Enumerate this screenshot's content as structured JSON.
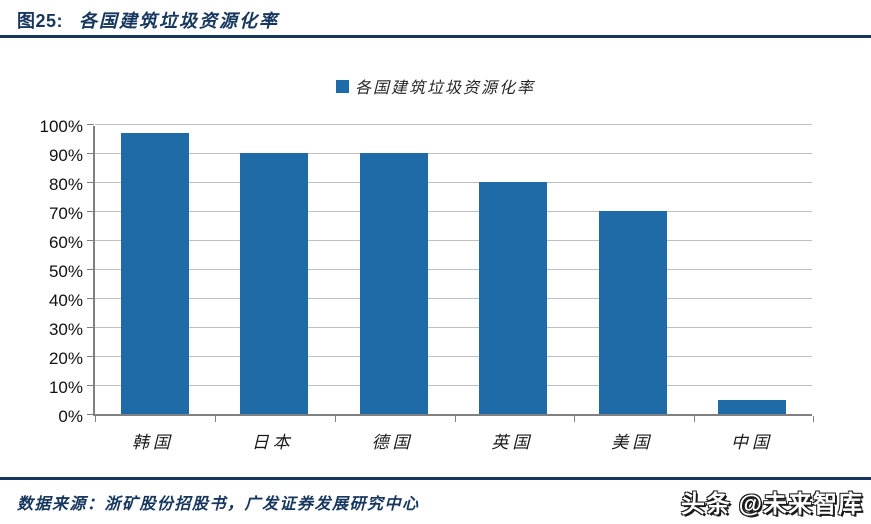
{
  "figure": {
    "title_prefix": "图25:",
    "title_text": "各国建筑垃圾资源化率",
    "source_line": "数据来源：浙矿股份招股书，广发证券发展研究中心",
    "watermark": "头条 @未来智库"
  },
  "legend": {
    "label": "各国建筑垃圾资源化率",
    "marker_color": "#1F6BA8"
  },
  "chart_data": {
    "type": "bar",
    "title": "各国建筑垃圾资源化率",
    "categories": [
      "韩国",
      "日本",
      "德国",
      "英国",
      "美国",
      "中国"
    ],
    "values": [
      97,
      90,
      90,
      80,
      70,
      5
    ],
    "unit": "%",
    "xlabel": "",
    "ylabel": "",
    "ylim": [
      0,
      100
    ],
    "ytick_step": 10,
    "ytick_labels": [
      "0%",
      "10%",
      "20%",
      "30%",
      "40%",
      "50%",
      "60%",
      "70%",
      "80%",
      "90%",
      "100%"
    ],
    "grid": true,
    "legend_position": "top-center",
    "bar_color": "#1F6BA8",
    "gridline_color": "#BFBFBF",
    "axis_color": "#808080"
  },
  "colors": {
    "accent_navy": "#17375E",
    "bar_blue": "#1F6BA8",
    "text_dark": "#1A1A1A"
  }
}
